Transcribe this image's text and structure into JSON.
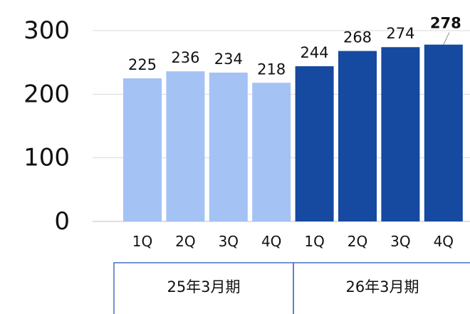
{
  "chart_data": {
    "type": "bar",
    "categories": [
      "1Q",
      "2Q",
      "3Q",
      "4Q",
      "1Q",
      "2Q",
      "3Q",
      "4Q"
    ],
    "values": [
      225,
      236,
      234,
      218,
      244,
      268,
      274,
      278
    ],
    "groups": [
      {
        "label": "25年3月期",
        "count": 4,
        "color": "#a4c2f4"
      },
      {
        "label": "26年3月期",
        "count": 4,
        "color": "#1649a0"
      }
    ],
    "highlighted_value_index": 7,
    "yticks": [
      0,
      100,
      200,
      300
    ],
    "ylim": [
      0,
      300
    ],
    "grid": true,
    "title": "",
    "xlabel": "",
    "ylabel": ""
  }
}
